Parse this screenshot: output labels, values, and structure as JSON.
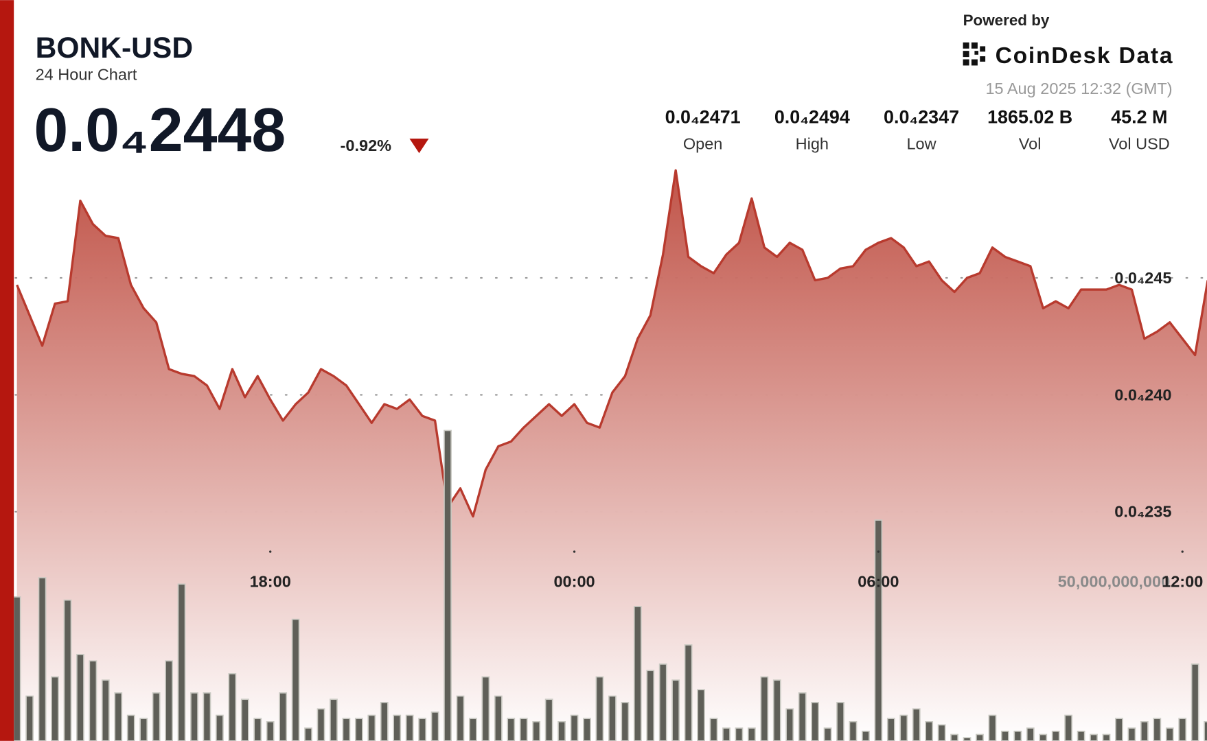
{
  "header": {
    "title": "BONK-USD",
    "subtitle": "24 Hour Chart",
    "price": "0.0₄2448",
    "change": "-0.92%",
    "powered_by": "Powered by",
    "brand": "CoinDesk Data",
    "timestamp": "15 Aug 2025 12:32 (GMT)",
    "stats": [
      {
        "value": "0.0₄2471",
        "label": "Open"
      },
      {
        "value": "0.0₄2494",
        "label": "High"
      },
      {
        "value": "0.0₄2347",
        "label": "Low"
      },
      {
        "value": "1865.02 B",
        "label": "Vol"
      },
      {
        "value": "45.2 M",
        "label": "Vol USD"
      }
    ]
  },
  "chart_data": {
    "type": "line",
    "x": [
      "13:00",
      "13:15",
      "13:30",
      "13:45",
      "14:00",
      "14:15",
      "14:30",
      "14:45",
      "15:00",
      "15:15",
      "15:30",
      "15:45",
      "16:00",
      "16:15",
      "16:30",
      "16:45",
      "17:00",
      "17:15",
      "17:30",
      "17:45",
      "18:00",
      "18:15",
      "18:30",
      "18:45",
      "19:00",
      "19:15",
      "19:30",
      "19:45",
      "20:00",
      "20:15",
      "20:30",
      "20:45",
      "21:00",
      "21:15",
      "21:30",
      "21:45",
      "22:00",
      "22:15",
      "22:30",
      "22:45",
      "23:00",
      "23:15",
      "23:30",
      "23:45",
      "00:00",
      "00:15",
      "00:30",
      "00:45",
      "01:00",
      "01:15",
      "01:30",
      "01:45",
      "02:00",
      "02:15",
      "02:30",
      "02:45",
      "03:00",
      "03:15",
      "03:30",
      "03:45",
      "04:00",
      "04:15",
      "04:30",
      "04:45",
      "05:00",
      "05:15",
      "05:30",
      "05:45",
      "06:00",
      "06:15",
      "06:30",
      "06:45",
      "07:00",
      "07:15",
      "07:30",
      "07:45",
      "08:00",
      "08:15",
      "08:30",
      "08:45",
      "09:00",
      "09:15",
      "09:30",
      "09:45",
      "10:00",
      "10:15",
      "10:30",
      "10:45",
      "11:00",
      "11:15",
      "11:30",
      "11:45",
      "12:00",
      "12:15",
      "12:30"
    ],
    "series": [
      {
        "color": "#b83a2e",
        "values": [
          2.447e-05,
          2.434e-05,
          2.421e-05,
          2.439e-05,
          2.44e-05,
          2.483e-05,
          2.473e-05,
          2.468e-05,
          2.467e-05,
          2.447e-05,
          2.437e-05,
          2.431e-05,
          2.411e-05,
          2.409e-05,
          2.408e-05,
          2.404e-05,
          2.394e-05,
          2.411e-05,
          2.399e-05,
          2.408e-05,
          2.398e-05,
          2.389e-05,
          2.396e-05,
          2.401e-05,
          2.411e-05,
          2.408e-05,
          2.404e-05,
          2.396e-05,
          2.388e-05,
          2.396e-05,
          2.394e-05,
          2.398e-05,
          2.391e-05,
          2.389e-05,
          2.352e-05,
          2.36e-05,
          2.348e-05,
          2.368e-05,
          2.378e-05,
          2.38e-05,
          2.386e-05,
          2.391e-05,
          2.396e-05,
          2.391e-05,
          2.396e-05,
          2.388e-05,
          2.386e-05,
          2.401e-05,
          2.408e-05,
          2.424e-05,
          2.434e-05,
          2.46e-05,
          2.496e-05,
          2.459e-05,
          2.455e-05,
          2.452e-05,
          2.46e-05,
          2.465e-05,
          2.484e-05,
          2.463e-05,
          2.459e-05,
          2.465e-05,
          2.462e-05,
          2.449e-05,
          2.45e-05,
          2.454e-05,
          2.455e-05,
          2.462e-05,
          2.465e-05,
          2.467e-05,
          2.463e-05,
          2.455e-05,
          2.457e-05,
          2.449e-05,
          2.444e-05,
          2.45e-05,
          2.452e-05,
          2.463e-05,
          2.459e-05,
          2.457e-05,
          2.455e-05,
          2.437e-05,
          2.44e-05,
          2.437e-05,
          2.445e-05,
          2.445e-05,
          2.445e-05,
          2.447e-05,
          2.445e-05,
          2.424e-05,
          2.427e-05,
          2.431e-05,
          2.424e-05,
          2.417e-05,
          2.449e-05
        ]
      },
      {
        "type": "bar",
        "axis": "y2",
        "color": "#5f5f58",
        "values": [
          45000000000,
          14000000000,
          51000000000,
          20000000000,
          44000000000,
          27000000000,
          25000000000,
          19000000000,
          15000000000,
          8000000000,
          7000000000,
          15000000000,
          25000000000,
          49000000000,
          15000000000,
          15000000000,
          8000000000,
          21000000000,
          13000000000,
          7000000000,
          6000000000,
          15000000000,
          38000000000,
          4000000000,
          10000000000,
          13000000000,
          7000000000,
          7000000000,
          8000000000,
          12000000000,
          8000000000,
          8000000000,
          7000000000,
          9000000000,
          97000000000,
          14000000000,
          7000000000,
          20000000000,
          14000000000,
          7000000000,
          7000000000,
          6000000000,
          13000000000,
          6000000000,
          8000000000,
          7000000000,
          20000000000,
          14000000000,
          12000000000,
          42000000000,
          22000000000,
          24000000000,
          19000000000,
          30000000000,
          16000000000,
          7000000000,
          4000000000,
          4000000000,
          4000000000,
          20000000000,
          19000000000,
          10000000000,
          15000000000,
          12000000000,
          4000000000,
          12000000000,
          6000000000,
          3000000000,
          69000000000,
          7000000000,
          8000000000,
          10000000000,
          6000000000,
          5000000000,
          2000000000,
          1000000000,
          2000000000,
          8000000000,
          3000000000,
          3000000000,
          4000000000,
          2000000000,
          3000000000,
          8000000000,
          3000000000,
          2000000000,
          2000000000,
          7000000000,
          4000000000,
          6000000000,
          7000000000,
          4000000000,
          7000000000,
          24000000000,
          6000000000
        ]
      }
    ],
    "ylim": [
      2.252e-05,
      2.5688e-05
    ],
    "yticks": [
      {
        "value": 2.35e-05,
        "label": "0.0₄235"
      },
      {
        "value": 2.4e-05,
        "label": "0.0₄240"
      },
      {
        "value": 2.45e-05,
        "label": "0.0₄245"
      }
    ],
    "y2lim": [
      0,
      231500000000
    ],
    "y2ticks": [
      {
        "value": 50000000000,
        "label": "50,000,000,000"
      }
    ],
    "xticks": [
      "18:00",
      "00:00",
      "06:00",
      "12:00"
    ],
    "grid": true
  }
}
